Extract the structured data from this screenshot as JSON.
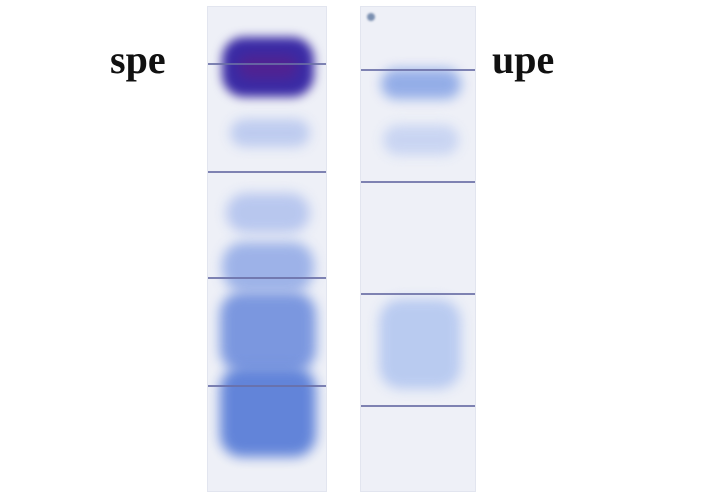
{
  "labels": {
    "left": "spe",
    "right": "upe"
  },
  "colors": {
    "background": "#ffffff",
    "strip": "#eef0f7",
    "band_dark": "#3b2fa8",
    "band_medium": "#4a6fd0",
    "band_light": "#9fb6ea",
    "marker_line": "#6a6fa6"
  }
}
